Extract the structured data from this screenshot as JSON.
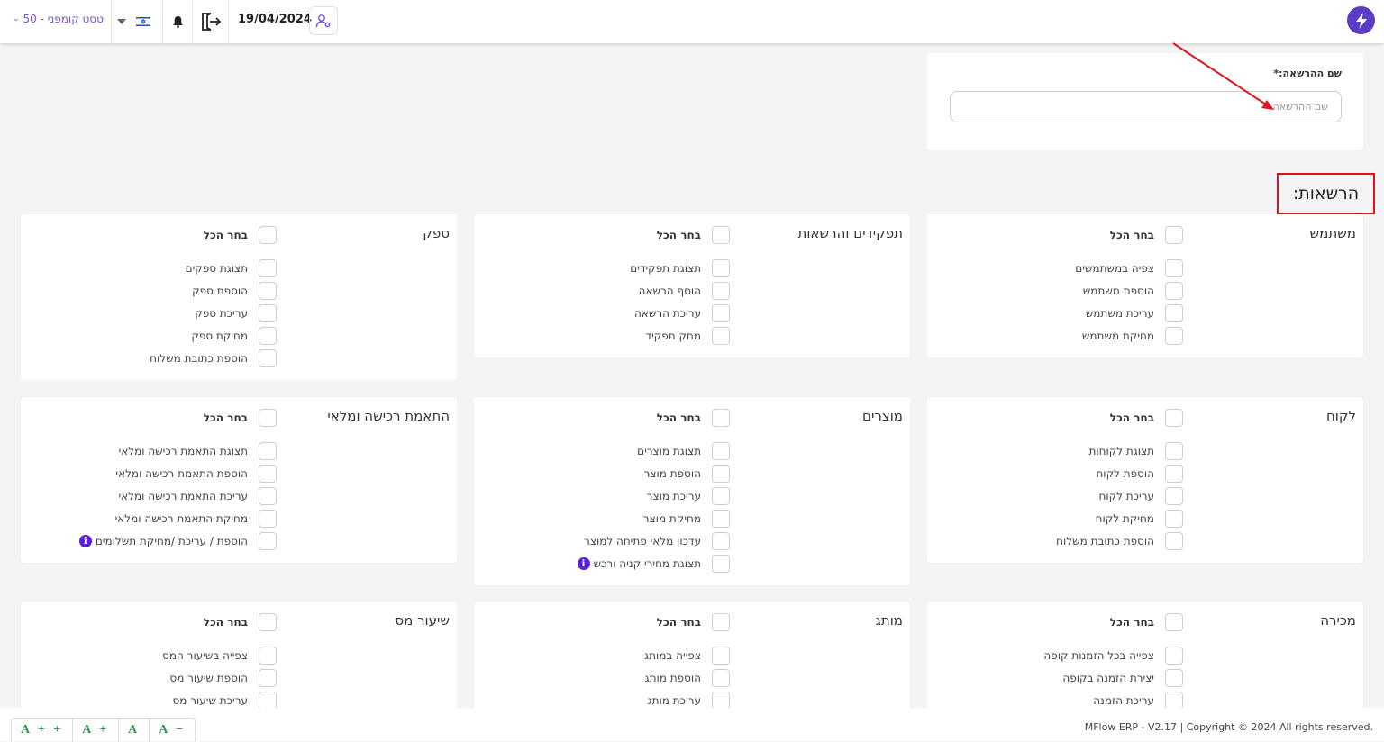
{
  "header": {
    "company_selector": "טסט קומפני - 50",
    "date": "19/04/2024",
    "icons": [
      "chevron-down-icon",
      "caret-down-icon",
      "israel-flag-icon",
      "bell-icon",
      "logout-icon",
      "user-settings-icon",
      "lightning-logo-icon"
    ]
  },
  "permission_name": {
    "label": "שם ההרשאה:*",
    "placeholder": "שם ההרשאה",
    "value": ""
  },
  "permissions_title": "הרשאות:",
  "select_all_label": "בחר הכל",
  "sections": [
    {
      "title": "משתמש",
      "items": [
        "צפיה במשתמשים",
        "הוספת משתמש",
        "עריכת משתמש",
        "מחיקת משתמש"
      ]
    },
    {
      "title": "תפקידים והרשאות",
      "items": [
        "תצוגת תפקידים",
        "הוסף הרשאה",
        "עריכת הרשאה",
        "מחק תפקיד"
      ]
    },
    {
      "title": "ספק",
      "items": [
        "תצוגת ספקים",
        "הוספת ספק",
        "עריכת ספק",
        "מחיקת ספק",
        "הוספת כתובת משלוח"
      ]
    },
    {
      "title": "לקוח",
      "items": [
        "תצוגת לקוחות",
        "הוספת לקוח",
        "עריכת לקוח",
        "מחיקת לקוח",
        "הוספת כתובת משלוח"
      ]
    },
    {
      "title": "מוצרים",
      "items": [
        "תצוגת מוצרים",
        "הוספת מוצר",
        "עריכת מוצר",
        "מחיקת מוצר",
        "עדכון מלאי פתיחה למוצר",
        "תצוגת מחירי קניה ורכש"
      ]
    },
    {
      "title": "התאמת רכישה ומלאי",
      "items": [
        "תצוגת התאמת רכישה ומלאי",
        "הוספת התאמת רכישה ומלאי",
        "עריכת התאמת רכישה ומלאי",
        "מחיקת התאמת רכישה ומלאי",
        "הוספת / עריכת /מחיקת תשלומים"
      ]
    },
    {
      "title": "מכירה",
      "items": [
        "צפייה בכל הזמנות קופה",
        "יצירת הזמנה בקופה",
        "עריכת הזמנה"
      ]
    },
    {
      "title": "מותג",
      "items": [
        "צפייה במותג",
        "הוספת מותג",
        "עריכת מותג"
      ]
    },
    {
      "title": "שיעור מס",
      "items": [
        "צפייה בשיעור המס",
        "הוספת שיעור מס",
        "עריכת שיעור מס"
      ]
    }
  ],
  "info_icon_glyph": "i",
  "font_size_buttons": [
    "A + +",
    "A +",
    "A",
    "A −"
  ],
  "footer": "MFlow ERP - V2.17 | Copyright © 2024 All rights reserved."
}
